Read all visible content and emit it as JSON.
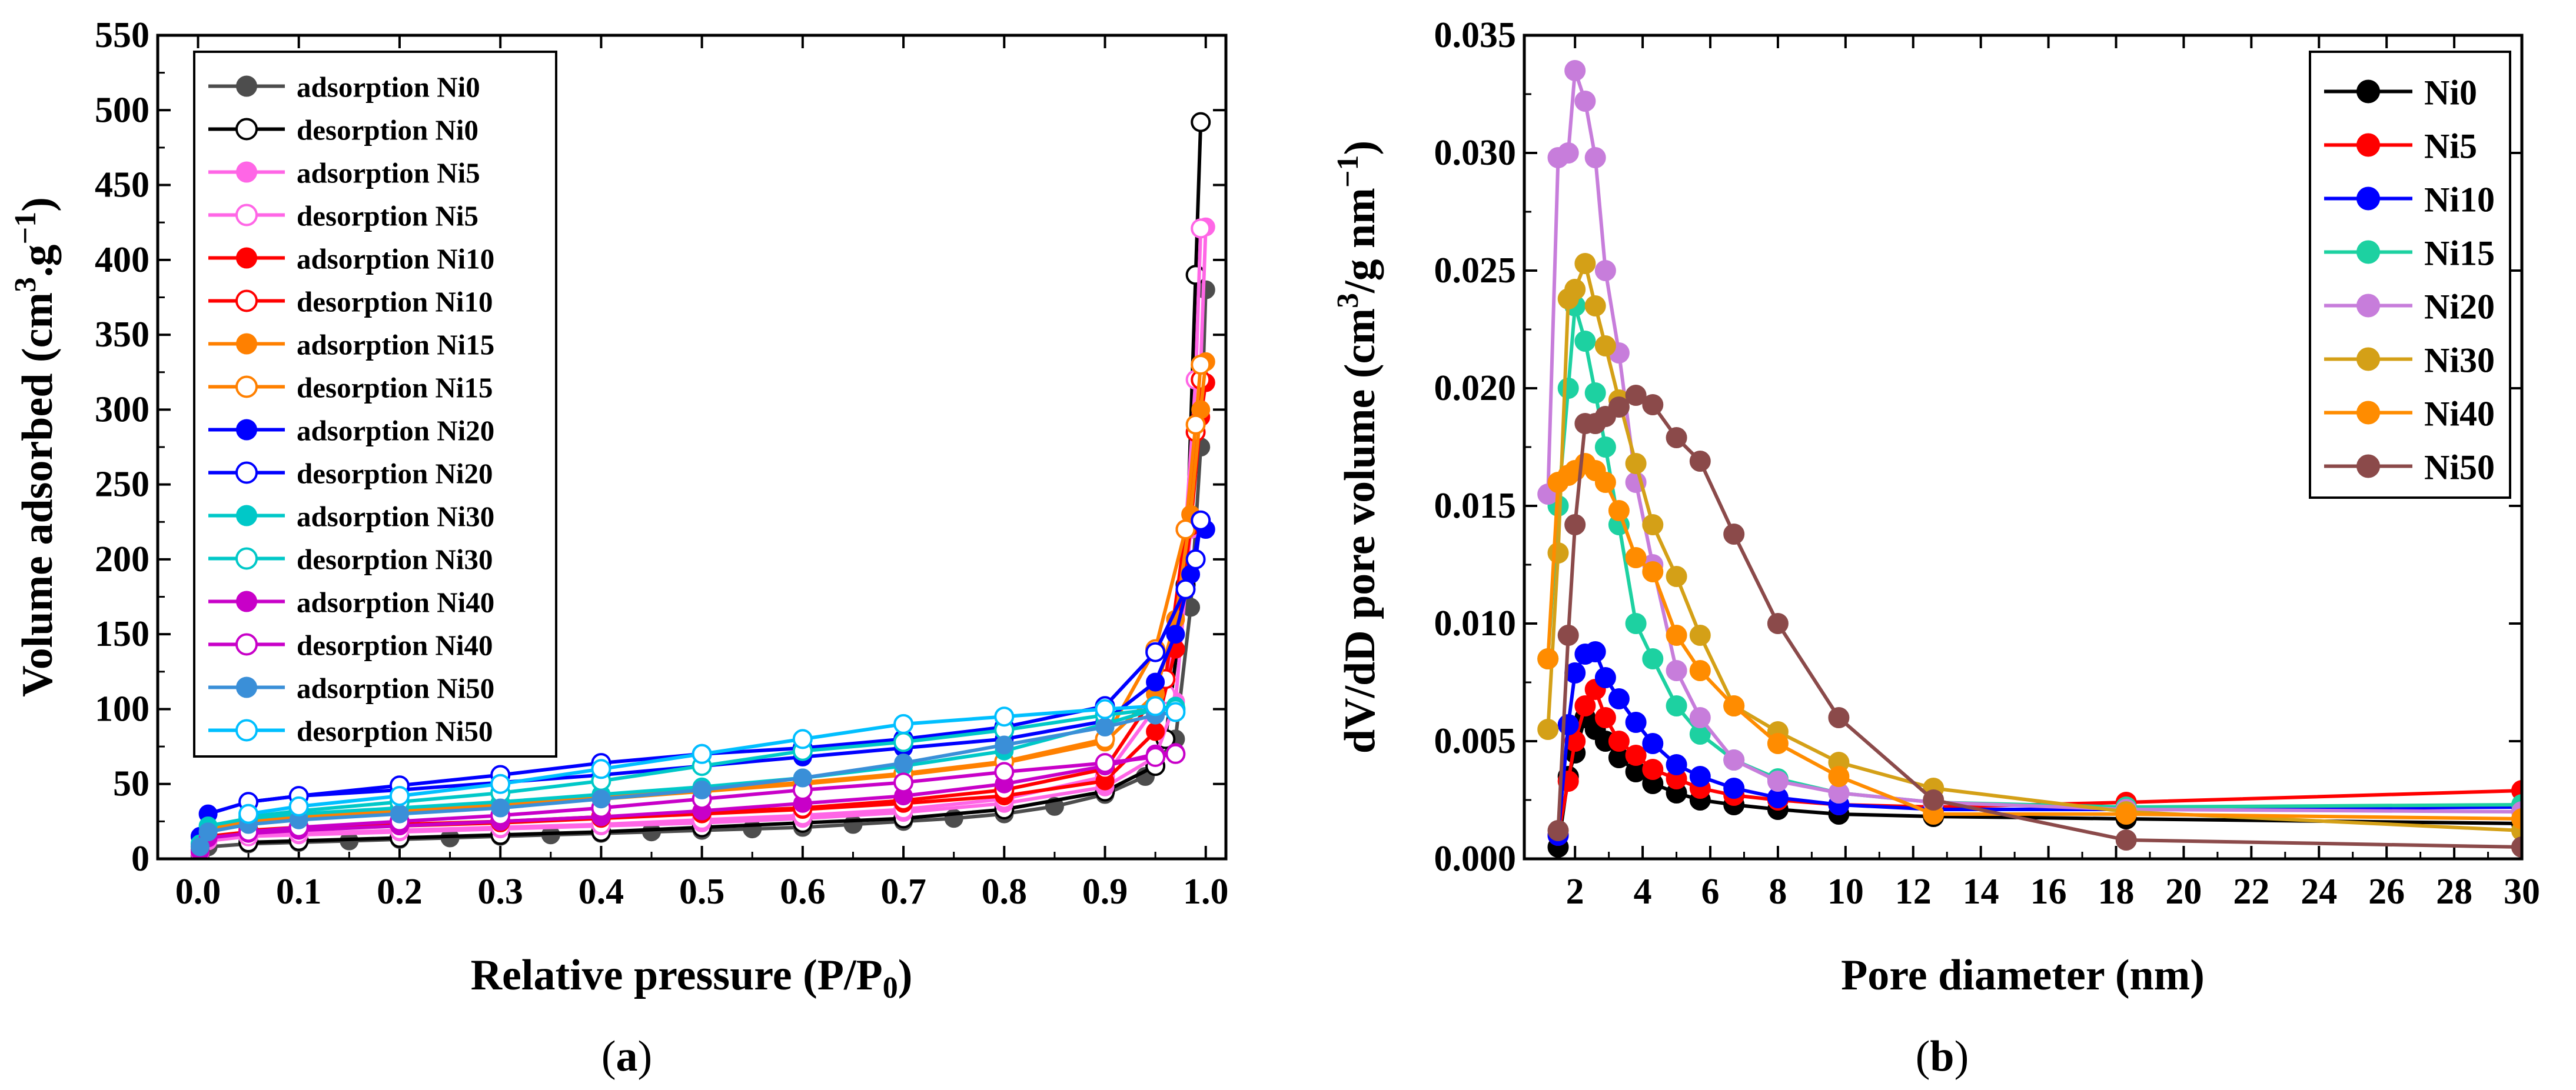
{
  "chart_data": [
    {
      "type": "line",
      "panel_label_prefix": "(",
      "panel_label_letter": "a",
      "panel_label_suffix": ")",
      "xlabel_main": "Relative pressure (P/P",
      "xlabel_sub": "0",
      "xlabel_end": ")",
      "ylabel_main": "Volume adsorbed (cm",
      "ylabel_sup1": "3",
      "ylabel_mid": ".g",
      "ylabel_sup2": "−1",
      "ylabel_end": ")",
      "xlim": [
        -0.04,
        1.02
      ],
      "ylim": [
        0,
        550
      ],
      "xticks": [
        0.0,
        0.1,
        0.2,
        0.3,
        0.4,
        0.5,
        0.6,
        0.7,
        0.8,
        0.9,
        1.0
      ],
      "xtick_labels": [
        "0.0",
        "0.1",
        "0.2",
        "0.3",
        "0.4",
        "0.5",
        "0.6",
        "0.7",
        "0.8",
        "0.9",
        "1.0"
      ],
      "yticks": [
        0,
        50,
        100,
        150,
        200,
        250,
        300,
        350,
        400,
        450,
        500,
        550
      ],
      "ytick_labels": [
        "0",
        "50",
        "100",
        "150",
        "200",
        "250",
        "300",
        "350",
        "400",
        "450",
        "500",
        "550"
      ],
      "grid": false,
      "legend_position": "top-left",
      "series": [
        {
          "name": "adsorption Ni0",
          "color": "#4d4d4d",
          "marker_fill": "solid",
          "x": [
            0.002,
            0.01,
            0.05,
            0.1,
            0.15,
            0.2,
            0.25,
            0.3,
            0.35,
            0.4,
            0.45,
            0.5,
            0.55,
            0.6,
            0.65,
            0.7,
            0.75,
            0.8,
            0.85,
            0.9,
            0.94,
            0.97,
            0.985,
            0.995,
            1.0
          ],
          "y": [
            2,
            8,
            10,
            11,
            12,
            13,
            14,
            15,
            16,
            17,
            18,
            19,
            20,
            21,
            23,
            25,
            27,
            30,
            35,
            43,
            55,
            80,
            168,
            275,
            380
          ]
        },
        {
          "name": "desorption Ni0",
          "color": "#000000",
          "marker_fill": "open",
          "x": [
            0.995,
            0.99,
            0.98,
            0.96,
            0.95,
            0.9,
            0.8,
            0.7,
            0.6,
            0.5,
            0.4,
            0.3,
            0.2,
            0.1,
            0.05
          ],
          "y": [
            492,
            390,
            183,
            80,
            62,
            45,
            33,
            27,
            24,
            21,
            18,
            16,
            14,
            12,
            11
          ]
        },
        {
          "name": "adsorption Ni5",
          "color": "#ff66e6",
          "marker_fill": "solid",
          "x": [
            0.002,
            0.01,
            0.05,
            0.1,
            0.2,
            0.3,
            0.4,
            0.5,
            0.6,
            0.7,
            0.8,
            0.9,
            0.95,
            0.97,
            0.985,
            0.995,
            1.0
          ],
          "y": [
            4,
            12,
            15,
            16,
            18,
            20,
            22,
            24,
            27,
            31,
            37,
            48,
            68,
            105,
            220,
            330,
            422
          ]
        },
        {
          "name": "desorption Ni5",
          "color": "#ff66e6",
          "marker_fill": "open",
          "x": [
            0.995,
            0.99,
            0.98,
            0.96,
            0.9,
            0.8,
            0.7,
            0.6,
            0.5,
            0.4,
            0.3,
            0.2,
            0.1,
            0.05
          ],
          "y": [
            421,
            320,
            220,
            110,
            55,
            40,
            33,
            29,
            26,
            23,
            21,
            19,
            17,
            15
          ]
        },
        {
          "name": "adsorption Ni10",
          "color": "#ff0000",
          "marker_fill": "solid",
          "x": [
            0.002,
            0.01,
            0.05,
            0.1,
            0.2,
            0.3,
            0.4,
            0.5,
            0.6,
            0.7,
            0.8,
            0.9,
            0.95,
            0.97,
            0.985,
            0.995,
            1.0
          ],
          "y": [
            6,
            15,
            18,
            20,
            22,
            24,
            27,
            30,
            33,
            37,
            42,
            52,
            85,
            140,
            222,
            295,
            318
          ]
        },
        {
          "name": "desorption Ni10",
          "color": "#ff0000",
          "marker_fill": "open",
          "x": [
            0.995,
            0.99,
            0.98,
            0.96,
            0.9,
            0.8,
            0.7,
            0.6,
            0.5,
            0.4,
            0.3,
            0.2,
            0.1,
            0.05
          ],
          "y": [
            320,
            285,
            220,
            120,
            60,
            46,
            39,
            34,
            31,
            28,
            25,
            23,
            21,
            19
          ]
        },
        {
          "name": "adsorption Ni15",
          "color": "#ff8000",
          "marker_fill": "solid",
          "x": [
            0.002,
            0.01,
            0.05,
            0.1,
            0.2,
            0.3,
            0.4,
            0.5,
            0.6,
            0.7,
            0.8,
            0.9,
            0.95,
            0.97,
            0.985,
            0.995,
            1.0
          ],
          "y": [
            8,
            20,
            25,
            28,
            32,
            36,
            40,
            45,
            50,
            56,
            64,
            78,
            110,
            160,
            230,
            300,
            332
          ]
        },
        {
          "name": "desorption Ni15",
          "color": "#ff8000",
          "marker_fill": "open",
          "x": [
            0.995,
            0.99,
            0.98,
            0.95,
            0.9,
            0.8,
            0.7,
            0.6,
            0.5,
            0.4,
            0.3,
            0.2,
            0.1,
            0.05
          ],
          "y": [
            330,
            290,
            220,
            140,
            80,
            65,
            57,
            51,
            46,
            41,
            37,
            33,
            29,
            26
          ]
        },
        {
          "name": "adsorption Ni20",
          "color": "#0000ff",
          "marker_fill": "solid",
          "x": [
            0.002,
            0.01,
            0.05,
            0.1,
            0.2,
            0.3,
            0.4,
            0.5,
            0.6,
            0.7,
            0.8,
            0.9,
            0.95,
            0.97,
            0.985,
            0.995,
            1.0
          ],
          "y": [
            15,
            30,
            38,
            42,
            46,
            51,
            56,
            62,
            68,
            74,
            80,
            92,
            118,
            150,
            190,
            225,
            220
          ]
        },
        {
          "name": "desorption Ni20",
          "color": "#0000ff",
          "marker_fill": "open",
          "x": [
            0.995,
            0.99,
            0.98,
            0.95,
            0.9,
            0.8,
            0.7,
            0.6,
            0.5,
            0.4,
            0.3,
            0.2,
            0.1,
            0.05
          ],
          "y": [
            226,
            200,
            180,
            138,
            102,
            88,
            80,
            74,
            70,
            64,
            56,
            49,
            42,
            38
          ]
        },
        {
          "name": "adsorption Ni30",
          "color": "#00c8c8",
          "marker_fill": "solid",
          "x": [
            0.002,
            0.01,
            0.05,
            0.1,
            0.2,
            0.3,
            0.4,
            0.5,
            0.6,
            0.7,
            0.8,
            0.9,
            0.95,
            0.97
          ],
          "y": [
            10,
            22,
            27,
            30,
            34,
            38,
            43,
            48,
            54,
            62,
            72,
            90,
            100,
            102
          ]
        },
        {
          "name": "desorption Ni30",
          "color": "#00c8c8",
          "marker_fill": "open",
          "x": [
            0.97,
            0.95,
            0.9,
            0.8,
            0.7,
            0.6,
            0.5,
            0.4,
            0.3,
            0.2,
            0.1,
            0.05
          ],
          "y": [
            100,
            100,
            96,
            86,
            78,
            72,
            62,
            52,
            44,
            38,
            32,
            28
          ]
        },
        {
          "name": "adsorption Ni40",
          "color": "#c800c8",
          "marker_fill": "solid",
          "x": [
            0.002,
            0.01,
            0.05,
            0.1,
            0.2,
            0.3,
            0.4,
            0.5,
            0.6,
            0.7,
            0.8,
            0.9,
            0.95,
            0.97
          ],
          "y": [
            5,
            14,
            17,
            19,
            22,
            25,
            28,
            32,
            37,
            42,
            50,
            62,
            70,
            71
          ]
        },
        {
          "name": "desorption Ni40",
          "color": "#c800c8",
          "marker_fill": "open",
          "x": [
            0.97,
            0.95,
            0.9,
            0.8,
            0.7,
            0.6,
            0.5,
            0.4,
            0.3,
            0.2,
            0.1,
            0.05
          ],
          "y": [
            70,
            68,
            64,
            58,
            51,
            46,
            40,
            34,
            29,
            25,
            21,
            18
          ]
        },
        {
          "name": "adsorption Ni50",
          "color": "#3a8fd8",
          "marker_fill": "shaded",
          "x": [
            0.002,
            0.01,
            0.05,
            0.1,
            0.2,
            0.3,
            0.4,
            0.5,
            0.6,
            0.7,
            0.8,
            0.9,
            0.95,
            0.97
          ],
          "y": [
            8,
            18,
            23,
            26,
            30,
            34,
            40,
            46,
            54,
            64,
            76,
            88,
            96,
            98
          ]
        },
        {
          "name": "desorption Ni50",
          "color": "#00bfff",
          "marker_fill": "open",
          "x": [
            0.97,
            0.95,
            0.9,
            0.8,
            0.7,
            0.6,
            0.5,
            0.4,
            0.3,
            0.2,
            0.1,
            0.05
          ],
          "y": [
            98,
            102,
            100,
            95,
            90,
            80,
            70,
            60,
            50,
            42,
            35,
            30
          ]
        }
      ]
    },
    {
      "type": "line",
      "panel_label_prefix": "(",
      "panel_label_letter": "b",
      "panel_label_suffix": ")",
      "xlabel": "Pore diameter (nm)",
      "ylabel_main": "dV/dD pore volume (cm",
      "ylabel_sup1": "3",
      "ylabel_mid": "/g nm",
      "ylabel_sup2": "−1",
      "ylabel_end": ")",
      "xlim": [
        0.5,
        30
      ],
      "ylim": [
        0,
        0.035
      ],
      "xticks": [
        2,
        4,
        6,
        8,
        10,
        12,
        14,
        16,
        18,
        20,
        22,
        24,
        26,
        28,
        30
      ],
      "xtick_labels": [
        "2",
        "4",
        "6",
        "8",
        "10",
        "12",
        "14",
        "16",
        "18",
        "20",
        "22",
        "24",
        "26",
        "28",
        "30"
      ],
      "yticks": [
        0,
        0.005,
        0.01,
        0.015,
        0.02,
        0.025,
        0.03,
        0.035
      ],
      "ytick_labels": [
        "0.000",
        "0.005",
        "0.010",
        "0.015",
        "0.020",
        "0.025",
        "0.030",
        "0.035"
      ],
      "grid": false,
      "legend_position": "top-right",
      "series": [
        {
          "name": "Ni0",
          "color": "#000000",
          "x": [
            1.5,
            1.8,
            2.0,
            2.3,
            2.6,
            2.9,
            3.3,
            3.8,
            4.3,
            5.0,
            5.7,
            6.7,
            8.0,
            9.8,
            12.6,
            18.3,
            30
          ],
          "y": [
            0.0005,
            0.0035,
            0.0045,
            0.006,
            0.0055,
            0.005,
            0.0043,
            0.0037,
            0.0032,
            0.0028,
            0.0025,
            0.0023,
            0.0021,
            0.0019,
            0.0018,
            0.0017,
            0.0015
          ]
        },
        {
          "name": "Ni5",
          "color": "#ff0000",
          "x": [
            1.5,
            1.8,
            2.0,
            2.3,
            2.6,
            2.9,
            3.3,
            3.8,
            4.3,
            5.0,
            5.7,
            6.7,
            8.0,
            9.8,
            12.6,
            18.3,
            30
          ],
          "y": [
            0.001,
            0.0033,
            0.005,
            0.0065,
            0.0072,
            0.006,
            0.005,
            0.0044,
            0.0038,
            0.0034,
            0.003,
            0.0027,
            0.0025,
            0.0023,
            0.0022,
            0.0024,
            0.0029
          ]
        },
        {
          "name": "Ni10",
          "color": "#0000ff",
          "x": [
            1.5,
            1.8,
            2.0,
            2.3,
            2.6,
            2.9,
            3.3,
            3.8,
            4.3,
            5.0,
            5.7,
            6.7,
            8.0,
            9.8,
            12.6,
            18.3,
            30
          ],
          "y": [
            0.001,
            0.0057,
            0.0079,
            0.0087,
            0.0088,
            0.0077,
            0.0068,
            0.0058,
            0.0049,
            0.004,
            0.0035,
            0.003,
            0.0026,
            0.0023,
            0.0021,
            0.0021,
            0.0022
          ]
        },
        {
          "name": "Ni15",
          "color": "#1dd1a1",
          "x": [
            1.2,
            1.5,
            1.8,
            2.0,
            2.3,
            2.6,
            2.9,
            3.3,
            3.8,
            4.3,
            5.0,
            5.7,
            6.7,
            8.0,
            9.8,
            12.6,
            18.3,
            30
          ],
          "y": [
            0.0085,
            0.015,
            0.02,
            0.0235,
            0.022,
            0.0198,
            0.0175,
            0.0142,
            0.01,
            0.0085,
            0.0065,
            0.0053,
            0.0042,
            0.0034,
            0.0028,
            0.0024,
            0.0022,
            0.0023
          ]
        },
        {
          "name": "Ni20",
          "color": "#c77ddb",
          "x": [
            1.2,
            1.5,
            1.8,
            2.0,
            2.3,
            2.6,
            2.9,
            3.3,
            3.8,
            4.3,
            5.0,
            5.7,
            6.7,
            8.0,
            9.8,
            12.6,
            18.3,
            30
          ],
          "y": [
            0.0155,
            0.0298,
            0.03,
            0.0335,
            0.0322,
            0.0298,
            0.025,
            0.0215,
            0.016,
            0.0125,
            0.008,
            0.006,
            0.0042,
            0.0033,
            0.0028,
            0.0024,
            0.0021,
            0.002
          ]
        },
        {
          "name": "Ni30",
          "color": "#d4a017",
          "x": [
            1.2,
            1.5,
            1.8,
            2.0,
            2.3,
            2.6,
            2.9,
            3.3,
            3.8,
            4.3,
            5.0,
            5.7,
            6.7,
            8.0,
            9.8,
            12.6,
            18.3,
            30
          ],
          "y": [
            0.0055,
            0.013,
            0.0238,
            0.0242,
            0.0253,
            0.0235,
            0.0218,
            0.0195,
            0.0168,
            0.0142,
            0.012,
            0.0095,
            0.0065,
            0.0054,
            0.0041,
            0.003,
            0.002,
            0.0012
          ]
        },
        {
          "name": "Ni40",
          "color": "#ff8c00",
          "x": [
            1.2,
            1.5,
            1.8,
            2.0,
            2.3,
            2.6,
            2.9,
            3.3,
            3.8,
            4.3,
            5.0,
            5.7,
            6.7,
            8.0,
            9.8,
            12.6,
            18.3,
            30
          ],
          "y": [
            0.0085,
            0.016,
            0.0163,
            0.0165,
            0.0168,
            0.0165,
            0.016,
            0.0148,
            0.0128,
            0.0122,
            0.0095,
            0.008,
            0.0065,
            0.0049,
            0.0035,
            0.0019,
            0.0019,
            0.0017
          ]
        },
        {
          "name": "Ni50",
          "color": "#8b4a4a",
          "x": [
            1.5,
            1.8,
            2.0,
            2.3,
            2.6,
            2.9,
            3.3,
            3.8,
            4.3,
            5.0,
            5.7,
            6.7,
            8.0,
            9.8,
            12.6,
            18.3,
            30
          ],
          "y": [
            0.0012,
            0.0095,
            0.0142,
            0.0185,
            0.0185,
            0.0188,
            0.0192,
            0.0197,
            0.0193,
            0.0179,
            0.0169,
            0.0138,
            0.01,
            0.006,
            0.0025,
            0.0008,
            0.0005
          ]
        }
      ]
    }
  ]
}
